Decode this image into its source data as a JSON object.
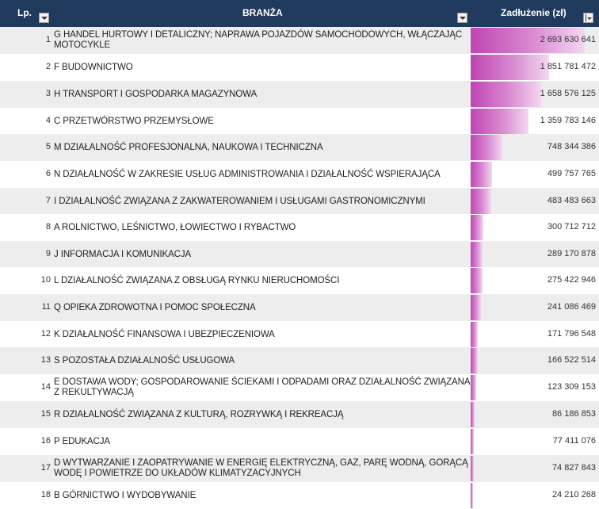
{
  "header": {
    "lp": "Lp.",
    "branza": "BRANŻA",
    "zadluzenie": "Zadłużenie (zł)",
    "filter_icon": "chevron-down-icon",
    "sorted_filter_icon": "sort-descending-icon"
  },
  "colors": {
    "header_bg": "#1f3a5c",
    "bar_color": "#c044b4",
    "row_alt": "#ededed"
  },
  "max_value": 2693630641,
  "rows": [
    {
      "lp": "1",
      "branza": "G HANDEL HURTOWY I DETALICZNY; NAPRAWA POJAZDÓW SAMOCHODOWYCH, WŁĄCZAJĄC MOTOCYKLE",
      "wartosc": "2 693 630 641",
      "value": 2693630641
    },
    {
      "lp": "2",
      "branza": "F BUDOWNICTWO",
      "wartosc": "1 851 781 472",
      "value": 1851781472
    },
    {
      "lp": "3",
      "branza": "H TRANSPORT I GOSPODARKA MAGAZYNOWA",
      "wartosc": "1 658 576 125",
      "value": 1658576125
    },
    {
      "lp": "4",
      "branza": "C PRZETWÓRSTWO PRZEMYSŁOWE",
      "wartosc": "1 359 783 146",
      "value": 1359783146
    },
    {
      "lp": "5",
      "branza": "M DZIAŁALNOŚĆ PROFESJONALNA, NAUKOWA I TECHNICZNA",
      "wartosc": "748 344 386",
      "value": 748344386
    },
    {
      "lp": "6",
      "branza": "N DZIAŁALNOŚĆ W ZAKRESIE USŁUG ADMINISTROWANIA I DZIAŁALNOŚĆ WSPIERAJĄCA",
      "wartosc": "499 757 765",
      "value": 499757765
    },
    {
      "lp": "7",
      "branza": "I DZIAŁALNOŚĆ ZWIĄZANA Z ZAKWATEROWANIEM I USŁUGAMI GASTRONOMICZNYMI",
      "wartosc": "483 483 663",
      "value": 483483663
    },
    {
      "lp": "8",
      "branza": "A ROLNICTWO, LEŚNICTWO, ŁOWIECTWO I RYBACTWO",
      "wartosc": "300 712 712",
      "value": 300712712
    },
    {
      "lp": "9",
      "branza": "J INFORMACJA I KOMUNIKACJA",
      "wartosc": "289 170 878",
      "value": 289170878
    },
    {
      "lp": "10",
      "branza": "L DZIAŁALNOŚĆ ZWIĄZANA Z OBSŁUGĄ RYNKU NIERUCHOMOŚCI",
      "wartosc": "275 422 946",
      "value": 275422946
    },
    {
      "lp": "11",
      "branza": "Q OPIEKA ZDROWOTNA I POMOC SPOŁECZNA",
      "wartosc": "241 086 469",
      "value": 241086469
    },
    {
      "lp": "12",
      "branza": "K DZIAŁALNOŚĆ FINANSOWA I UBEZPIECZENIOWA",
      "wartosc": "171 796 548",
      "value": 171796548
    },
    {
      "lp": "13",
      "branza": "S POZOSTAŁA DZIAŁALNOŚĆ USŁUGOWA",
      "wartosc": "166 522 514",
      "value": 166522514
    },
    {
      "lp": "14",
      "branza": "E DOSTAWA WODY; GOSPODAROWANIE ŚCIEKAMI I ODPADAMI ORAZ DZIAŁALNOŚĆ ZWIĄZANA Z REKULTYWACJĄ",
      "wartosc": "123 309 153",
      "value": 123309153
    },
    {
      "lp": "15",
      "branza": "R DZIAŁALNOŚĆ ZWIĄZANA Z KULTURĄ, ROZRYWKĄ I REKREACJĄ",
      "wartosc": "86 186 853",
      "value": 86186853
    },
    {
      "lp": "16",
      "branza": "P EDUKACJA",
      "wartosc": "77 411 076",
      "value": 77411076
    },
    {
      "lp": "17",
      "branza": "D WYTWARZANIE I ZAOPATRYWANIE W ENERGIĘ ELEKTRYCZNĄ, GAZ, PARĘ WODNĄ, GORĄCĄ WODĘ I POWIETRZE DO UKŁADÓW KLIMATYZACYJNYCH",
      "wartosc": "74 827 843",
      "value": 74827843
    },
    {
      "lp": "18",
      "branza": "B GÓRNICTWO I WYDOBYWANIE",
      "wartosc": "24 210 268",
      "value": 24210268
    }
  ]
}
